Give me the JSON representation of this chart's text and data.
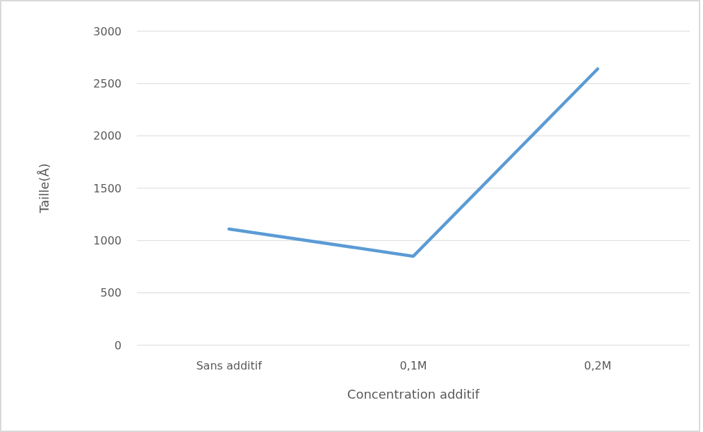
{
  "chart_data": {
    "type": "line",
    "xlabel": "Concentration additif",
    "ylabel": "Taille(Å)",
    "categories": [
      "Sans additif",
      "0,1M",
      "0,2M"
    ],
    "series": [
      {
        "color": "#5b9bd5",
        "values": [
          1110,
          850,
          2640
        ]
      }
    ],
    "ylim": [
      0,
      3000
    ],
    "yticks": [
      0,
      500,
      1000,
      1500,
      2000,
      2500,
      3000
    ],
    "grid": "y",
    "marker": "none",
    "line_style": "solid"
  }
}
